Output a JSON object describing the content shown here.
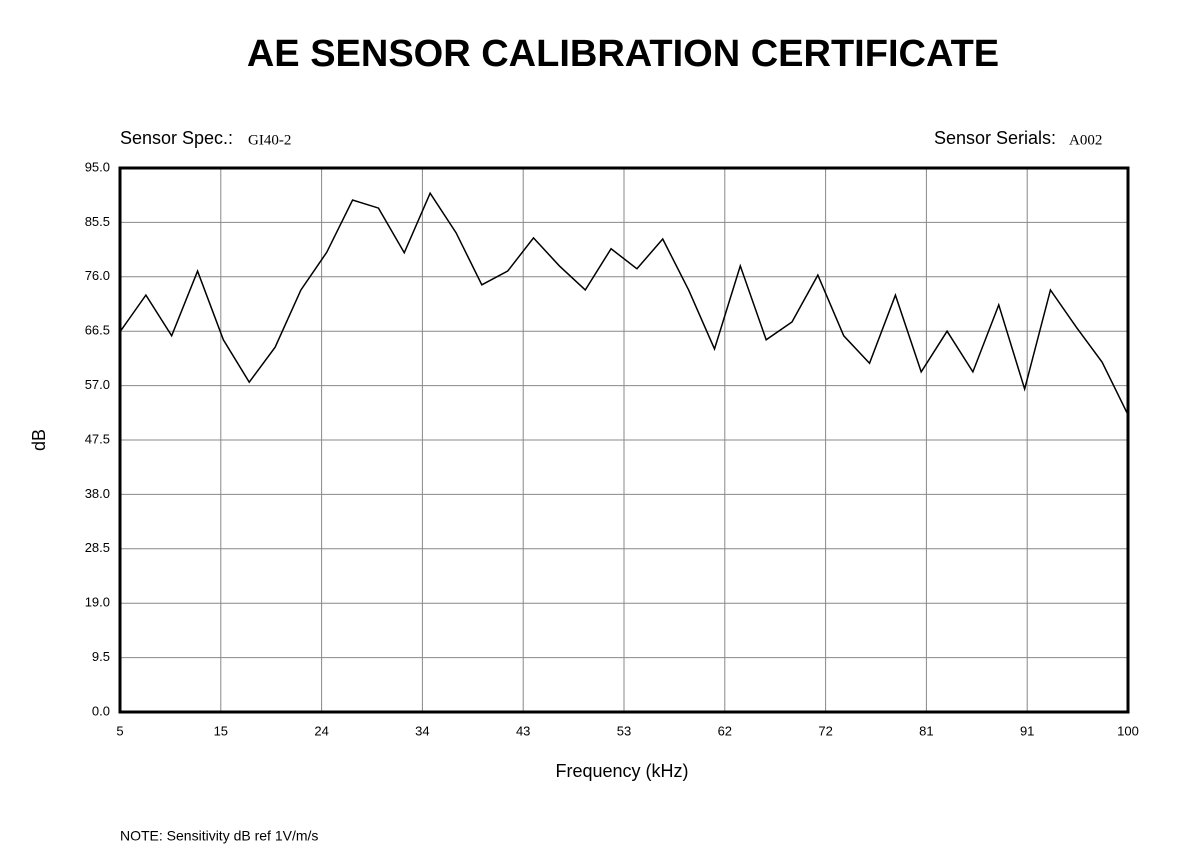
{
  "chart_data": {
    "type": "line",
    "title": "AE SENSOR CALIBRATION CERTIFICATE",
    "sensor_spec_label": "Sensor Spec.:",
    "sensor_spec": "GI40-2",
    "sensor_serials_label": "Sensor Serials:",
    "sensor_serials": "A002",
    "xlabel": "Frequency (kHz)",
    "ylabel": "dB",
    "note": "NOTE:  Sensitivity dB ref 1V/m/s",
    "x": [
      5,
      7.44,
      9.87,
      12.31,
      14.74,
      17.18,
      19.62,
      22.05,
      24.49,
      26.92,
      29.36,
      31.79,
      34.23,
      36.67,
      39.1,
      41.54,
      43.97,
      46.41,
      48.85,
      51.28,
      53.72,
      56.15,
      58.59,
      61.03,
      63.46,
      65.9,
      68.33,
      70.77,
      73.21,
      75.64,
      78.08,
      80.51,
      82.95,
      85.38,
      87.82,
      90.26,
      92.69,
      95.13,
      97.56,
      100
    ],
    "series": [
      {
        "name": "Sensitivity",
        "color": "#000000",
        "values": [
          66.4,
          72.8,
          65.7,
          77.0,
          65.0,
          57.6,
          63.7,
          73.7,
          80.3,
          89.4,
          88.0,
          80.2,
          90.6,
          83.7,
          74.6,
          77.0,
          82.8,
          77.9,
          73.7,
          80.9,
          77.4,
          82.6,
          73.7,
          63.4,
          77.9,
          65.0,
          68.1,
          76.3,
          65.7,
          60.9,
          72.8,
          59.4,
          66.5,
          59.4,
          71.1,
          56.4,
          73.7,
          67.2,
          61.1,
          51.9
        ]
      }
    ],
    "xlim": [
      5,
      100
    ],
    "xticks": [
      5,
      {
        "value": 14.5,
        "label": "15"
      },
      24,
      {
        "value": 33.5,
        "label": "34"
      },
      43,
      {
        "value": 52.5,
        "label": "53"
      },
      62,
      {
        "value": 71.5,
        "label": "72"
      },
      81,
      {
        "value": 90.5,
        "label": "91"
      },
      100
    ],
    "ylim": [
      0,
      95
    ],
    "yticks": [
      {
        "value": 0,
        "label": "0.0"
      },
      9.5,
      {
        "value": 19,
        "label": "19.0"
      },
      28.5,
      {
        "value": 38,
        "label": "38.0"
      },
      47.5,
      {
        "value": 57,
        "label": "57.0"
      },
      66.5,
      {
        "value": 76,
        "label": "76.0"
      },
      85.5,
      {
        "value": 95,
        "label": "95.0"
      }
    ],
    "grid": true
  }
}
